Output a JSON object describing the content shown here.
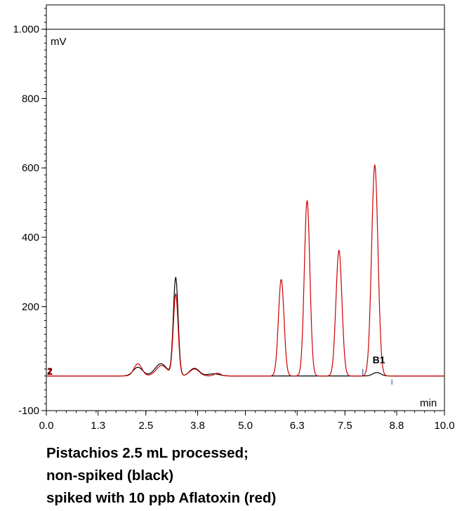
{
  "chart_data": {
    "type": "line",
    "title": "",
    "xlabel": "min",
    "ylabel": "mV",
    "xlim": [
      0.0,
      10.0
    ],
    "ylim": [
      -100,
      1070
    ],
    "x_ticks": [
      {
        "value": 0.0,
        "label": "0.0"
      },
      {
        "value": 1.3,
        "label": "1.3"
      },
      {
        "value": 2.5,
        "label": "2.5"
      },
      {
        "value": 3.8,
        "label": "3.8"
      },
      {
        "value": 5.0,
        "label": "5.0"
      },
      {
        "value": 6.3,
        "label": "6.3"
      },
      {
        "value": 7.5,
        "label": "7.5"
      },
      {
        "value": 8.8,
        "label": "8.8"
      },
      {
        "value": 10.0,
        "label": "10.0"
      }
    ],
    "y_ticks": [
      {
        "value": -100,
        "label": "-100"
      },
      {
        "value": 200,
        "label": "200"
      },
      {
        "value": 400,
        "label": "400"
      },
      {
        "value": 600,
        "label": "600"
      },
      {
        "value": 800,
        "label": "800"
      },
      {
        "value": 1000,
        "label": "1.000"
      }
    ],
    "reference_line": {
      "y": 1000
    },
    "series": [
      {
        "color": "#000000",
        "baseline": 0,
        "peaks": [
          {
            "x": 2.3,
            "height": 25,
            "width": 0.12
          },
          {
            "x": 2.88,
            "height": 35,
            "width": 0.15
          },
          {
            "x": 3.25,
            "height": 282,
            "width": 0.06
          },
          {
            "x": 3.72,
            "height": 22,
            "width": 0.12
          },
          {
            "x": 4.2,
            "height": 6,
            "width": 0.15
          },
          {
            "x": 8.3,
            "height": 10,
            "width": 0.1
          }
        ]
      },
      {
        "color": "#cc0000",
        "baseline": 0,
        "peaks": [
          {
            "x": 2.3,
            "height": 35,
            "width": 0.1
          },
          {
            "x": 2.9,
            "height": 30,
            "width": 0.14
          },
          {
            "x": 3.25,
            "height": 235,
            "width": 0.06
          },
          {
            "x": 3.72,
            "height": 20,
            "width": 0.12
          },
          {
            "x": 4.3,
            "height": 8,
            "width": 0.08
          },
          {
            "x": 5.9,
            "height": 278,
            "width": 0.07
          },
          {
            "x": 6.55,
            "height": 505,
            "width": 0.07
          },
          {
            "x": 7.35,
            "height": 362,
            "width": 0.075
          },
          {
            "x": 8.25,
            "height": 608,
            "width": 0.08
          }
        ]
      }
    ],
    "annotations": [
      {
        "text": "B1",
        "x": 8.3,
        "y": 20
      }
    ],
    "grid": false,
    "legend": "none"
  },
  "caption": [
    "Pistachios 2.5 mL  processed;",
    "non-spiked (black)",
    "spiked with 10 ppb Aflatoxin (red)"
  ],
  "trace_markers": [
    "2",
    "1"
  ]
}
